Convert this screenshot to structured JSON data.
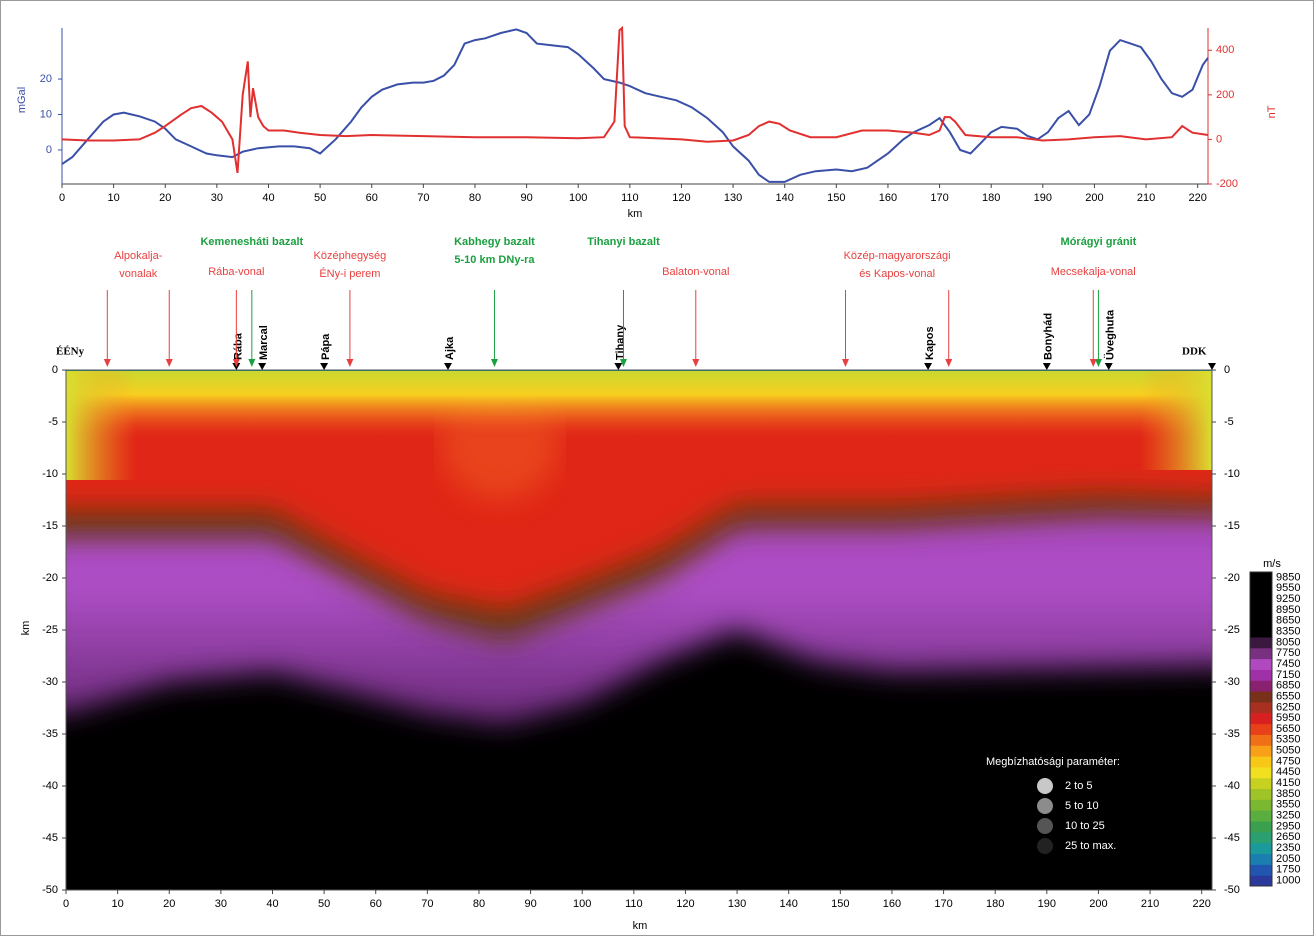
{
  "chart_data": [
    {
      "type": "line",
      "xlabel": "km",
      "ylabel": "mGal",
      "y2label": "nT",
      "xlim": [
        0,
        222
      ],
      "xticks": [
        0,
        10,
        20,
        30,
        40,
        50,
        60,
        70,
        80,
        90,
        100,
        110,
        120,
        130,
        140,
        150,
        160,
        170,
        180,
        190,
        200,
        210,
        220
      ],
      "ylim": [
        -9.6,
        34.4
      ],
      "yticks": [
        0,
        10,
        20
      ],
      "y2lim": [
        -200,
        500
      ],
      "y2ticks": [
        -200,
        0,
        200,
        400
      ],
      "series": [
        {
          "color": "#3a4fa8",
          "x": [
            0,
            2,
            5,
            8,
            10,
            12,
            15,
            18,
            20,
            22,
            25,
            28,
            30,
            33,
            35,
            38,
            42,
            45,
            48,
            50,
            53,
            56,
            58,
            60,
            62,
            65,
            68,
            70,
            72,
            74,
            76,
            78,
            80,
            82,
            85,
            88,
            90,
            92,
            95,
            98,
            100,
            103,
            105,
            108,
            110,
            113,
            116,
            119,
            122,
            125,
            128,
            130,
            133,
            135,
            137,
            140,
            143,
            146,
            150,
            153,
            156,
            160,
            163,
            165,
            168,
            170,
            172,
            174,
            176,
            178,
            180,
            182,
            185,
            187,
            189,
            191,
            193,
            195,
            197,
            199,
            201,
            203,
            205,
            207,
            209,
            211,
            213,
            215,
            217,
            219,
            221,
            222
          ],
          "values": [
            -4,
            -2,
            3,
            8,
            10,
            10.5,
            9.5,
            8,
            6,
            3,
            1,
            -1,
            -1.5,
            -2,
            -0.5,
            0.5,
            1,
            1,
            0.5,
            -1,
            3,
            8,
            12,
            15,
            17,
            18.5,
            19,
            19,
            19.5,
            21,
            24,
            30,
            31,
            31.5,
            33,
            34,
            33,
            30,
            29.5,
            29,
            27,
            23,
            20,
            19,
            18,
            16,
            15,
            14,
            12,
            9,
            5,
            1,
            -3,
            -7,
            -9,
            -9,
            -7,
            -6,
            -5.5,
            -6,
            -5,
            -1,
            3,
            5,
            7,
            9,
            5,
            0,
            -1,
            2,
            5,
            6.5,
            6,
            4,
            3,
            5,
            9,
            11,
            7,
            10,
            18,
            28,
            31,
            30,
            29,
            25,
            20,
            16,
            15,
            17,
            24,
            26
          ]
        },
        {
          "color": "#e03030",
          "axis": "y2",
          "x": [
            0,
            5,
            10,
            15,
            18,
            20,
            23,
            25,
            27,
            29,
            31,
            32,
            33,
            34,
            35,
            36,
            36.5,
            37,
            38,
            39,
            40,
            43,
            46,
            50,
            55,
            60,
            70,
            80,
            90,
            100,
            105,
            107,
            108,
            108.5,
            109,
            110,
            115,
            120,
            125,
            130,
            133,
            135,
            137,
            139,
            141,
            145,
            150,
            155,
            160,
            165,
            168,
            170,
            171,
            172,
            173,
            175,
            180,
            185,
            190,
            195,
            200,
            205,
            210,
            215,
            217,
            219,
            222
          ],
          "values": [
            0,
            -5,
            -5,
            0,
            30,
            60,
            110,
            140,
            150,
            120,
            80,
            40,
            0,
            -150,
            200,
            350,
            100,
            230,
            100,
            60,
            40,
            40,
            30,
            20,
            15,
            20,
            15,
            10,
            10,
            5,
            10,
            80,
            490,
            500,
            60,
            10,
            5,
            0,
            -10,
            -5,
            20,
            60,
            80,
            70,
            40,
            10,
            10,
            40,
            40,
            30,
            20,
            40,
            100,
            100,
            80,
            20,
            10,
            10,
            -5,
            0,
            10,
            15,
            0,
            10,
            60,
            30,
            20
          ]
        }
      ]
    },
    {
      "type": "section",
      "xlabel": "km",
      "ylabel": "km",
      "xlim": [
        0,
        222
      ],
      "xticks": [
        0,
        10,
        20,
        30,
        40,
        50,
        60,
        70,
        80,
        90,
        100,
        110,
        120,
        130,
        140,
        150,
        160,
        170,
        180,
        190,
        200,
        210,
        220
      ],
      "ylim": [
        -50,
        0
      ],
      "yticks": [
        0,
        -5,
        -10,
        -15,
        -20,
        -25,
        -30,
        -35,
        -40,
        -45,
        -50
      ],
      "ends": [
        "ÉÉNy",
        "DDK"
      ],
      "stations": [
        {
          "name": "Rába",
          "x": 33
        },
        {
          "name": "Marcal",
          "x": 38
        },
        {
          "name": "Pápa",
          "x": 50
        },
        {
          "name": "Ajka",
          "x": 74
        },
        {
          "name": "Tihany",
          "x": 107
        },
        {
          "name": "Kapos",
          "x": 167
        },
        {
          "name": "Bonyhád",
          "x": 190
        },
        {
          "name": "Üveghuta",
          "x": 202
        },
        {
          "name": "DDK",
          "x": 222
        }
      ],
      "annotations": [
        {
          "lines": [
            "Alpokalja-",
            "vonalak"
          ],
          "color": "#e84040",
          "arrows": [
            8,
            20
          ]
        },
        {
          "lines": [
            "Kemenesháti bazalt"
          ],
          "color": "#1aa040",
          "arrows": [
            36
          ]
        },
        {
          "lines": [
            "Rába-vonal"
          ],
          "color": "#e84040",
          "arrows": [
            33
          ]
        },
        {
          "lines": [
            "Középhegység",
            "ÉNy-i perem"
          ],
          "color": "#e84040",
          "arrows": [
            55
          ]
        },
        {
          "lines": [
            "Kabhegy bazalt",
            "5-10 km DNy-ra"
          ],
          "color": "#1aa040",
          "arrows": [
            83
          ]
        },
        {
          "lines": [
            "Tihanyi bazalt"
          ],
          "color": "#1aa040",
          "arrows": [
            108
          ]
        },
        {
          "lines": [
            "Balaton-vonal"
          ],
          "color": "#e84040",
          "arrows": [
            122
          ]
        },
        {
          "lines": [
            "Közép-magyarországi",
            "és Kapos-vonal"
          ],
          "color": "#e84040",
          "arrows": [
            151,
            171
          ]
        },
        {
          "lines": [
            "Mórágyi gránit"
          ],
          "color": "#1aa040",
          "arrows": [
            200
          ]
        },
        {
          "lines": [
            "Mecsekalja-vonal"
          ],
          "color": "#e84040",
          "arrows": [
            199
          ]
        }
      ],
      "colorbar": {
        "unit": "m/s",
        "ticks": [
          1000,
          1750,
          2050,
          2350,
          2650,
          2950,
          3250,
          3550,
          3850,
          4150,
          4450,
          4750,
          5050,
          5350,
          5650,
          5950,
          6250,
          6550,
          6850,
          7150,
          7450,
          7750,
          8050,
          8350,
          8650,
          8950,
          9250,
          9550,
          9850
        ],
        "colors": [
          "#2b3a9a",
          "#2255b0",
          "#1a7fb0",
          "#1a9a9a",
          "#2aa070",
          "#3aa050",
          "#5aae40",
          "#7ab830",
          "#9ec428",
          "#c8d020",
          "#f0e020",
          "#f8c818",
          "#f8a018",
          "#f07018",
          "#e84018",
          "#d82020",
          "#a83020",
          "#783018",
          "#8a2070",
          "#a030a8",
          "#b048c0",
          "#7a3080",
          "#3a1840",
          "#000000",
          "#000000",
          "#000000",
          "#000000",
          "#000000",
          "#000000"
        ]
      },
      "legend": {
        "title": "Megbízhatósági paraméter:",
        "entries": [
          {
            "label": "2 to 5",
            "color": "#c8c8c8"
          },
          {
            "label": "5 to 10",
            "color": "#8c8c8c"
          },
          {
            "label": "10 to 25",
            "color": "#555555"
          },
          {
            "label": "25 to max.",
            "color": "#222222"
          }
        ]
      }
    }
  ]
}
